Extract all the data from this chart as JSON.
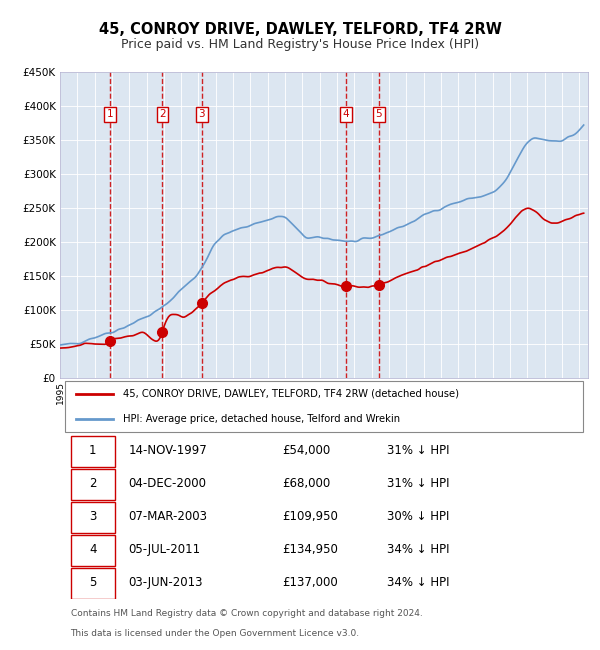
{
  "title": "45, CONROY DRIVE, DAWLEY, TELFORD, TF4 2RW",
  "subtitle": "Price paid vs. HM Land Registry's House Price Index (HPI)",
  "footer_line1": "Contains HM Land Registry data © Crown copyright and database right 2024.",
  "footer_line2": "This data is licensed under the Open Government Licence v3.0.",
  "legend_label_red": "45, CONROY DRIVE, DAWLEY, TELFORD, TF4 2RW (detached house)",
  "legend_label_blue": "HPI: Average price, detached house, Telford and Wrekin",
  "table_rows": [
    [
      "1",
      "14-NOV-1997",
      "£54,000",
      "31% ↓ HPI"
    ],
    [
      "2",
      "04-DEC-2000",
      "£68,000",
      "31% ↓ HPI"
    ],
    [
      "3",
      "07-MAR-2003",
      "£109,950",
      "30% ↓ HPI"
    ],
    [
      "4",
      "05-JUL-2011",
      "£134,950",
      "34% ↓ HPI"
    ],
    [
      "5",
      "03-JUN-2013",
      "£137,000",
      "34% ↓ HPI"
    ]
  ],
  "sale_dates_x": [
    1997.87,
    2000.92,
    2003.18,
    2011.51,
    2013.42
  ],
  "sale_prices_y": [
    54000,
    68000,
    109950,
    134950,
    137000
  ],
  "sale_labels": [
    "1",
    "2",
    "3",
    "4",
    "5"
  ],
  "ylim": [
    0,
    450000
  ],
  "yticks": [
    0,
    50000,
    100000,
    150000,
    200000,
    250000,
    300000,
    350000,
    400000,
    450000
  ],
  "xlim_start": 1995.0,
  "xlim_end": 2025.5,
  "background_color": "#dce6f1",
  "plot_bg_color": "#dce6f1",
  "red_color": "#cc0000",
  "blue_color": "#6699cc",
  "dashed_line_color": "#cc0000",
  "grid_color": "#aaaacc",
  "outer_bg": "#ffffff"
}
